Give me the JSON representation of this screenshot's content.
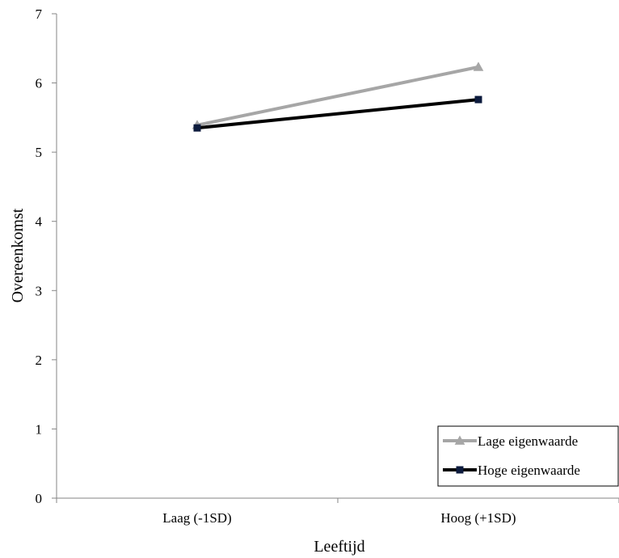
{
  "chart_data": {
    "type": "line",
    "categories": [
      "Laag (-1SD)",
      "Hoog (+1SD)"
    ],
    "series": [
      {
        "name": "Lage eigenwaarde",
        "values": [
          5.39,
          6.23
        ],
        "color": "#a6a6a6",
        "marker": "triangle"
      },
      {
        "name": "Hoge eigenwaarde",
        "values": [
          5.35,
          5.76
        ],
        "color": "#000000",
        "marker": "square"
      }
    ],
    "title": "",
    "xlabel": "Leeftijd",
    "ylabel": "Overeenkomst",
    "ylim": [
      0,
      7
    ],
    "yticks": [
      "0",
      "1",
      "2",
      "3",
      "4",
      "5",
      "6",
      "7"
    ],
    "grid": false,
    "legend_position": "bottom-right"
  }
}
